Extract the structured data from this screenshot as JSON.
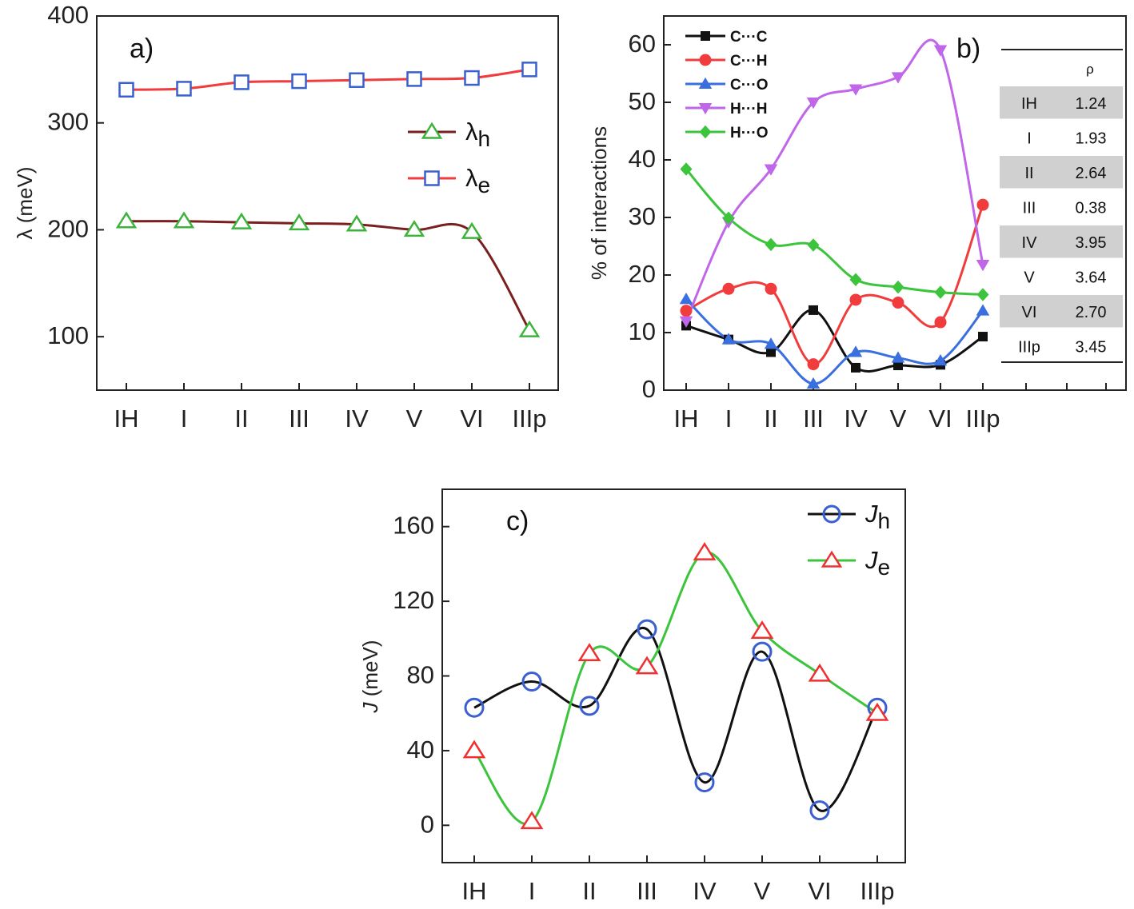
{
  "chart_data": [
    {
      "panel_label": "a)",
      "type": "line",
      "categories": [
        "IH",
        "I",
        "II",
        "III",
        "IV",
        "V",
        "VI",
        "IIIp"
      ],
      "xlabel": "",
      "ylabel": "λ (meV)",
      "ylim": [
        50,
        400
      ],
      "yticks": [
        100,
        200,
        300,
        400
      ],
      "legend_placement": "right",
      "series": [
        {
          "name": "λh",
          "name_main": "λ",
          "name_sub": "h",
          "marker": "triangle-open",
          "marker_color": "#3cb43c",
          "line_color": "#7a1f1f",
          "values": [
            208,
            208,
            207,
            206,
            205,
            200,
            198,
            106
          ]
        },
        {
          "name": "λe",
          "name_main": "λ",
          "name_sub": "e",
          "marker": "square-open",
          "marker_color": "#3a5fd0",
          "line_color": "#f03c3c",
          "values": [
            331,
            332,
            338,
            339,
            340,
            341,
            342,
            350
          ]
        }
      ]
    },
    {
      "panel_label": "b)",
      "type": "line",
      "categories": [
        "IH",
        "I",
        "II",
        "III",
        "IV",
        "V",
        "VI",
        "IIIp"
      ],
      "xlabel": "",
      "ylabel": "% of interactions",
      "ylim": [
        0,
        65
      ],
      "yticks": [
        0,
        10,
        20,
        30,
        40,
        50,
        60
      ],
      "legend_placement": "top-left",
      "series": [
        {
          "name": "C···C",
          "marker": "square",
          "color": "#111111",
          "values": [
            11.2,
            8.8,
            6.6,
            13.9,
            3.9,
            4.3,
            4.4,
            9.3
          ]
        },
        {
          "name": "C···H",
          "marker": "circle",
          "color": "#f03c3c",
          "values": [
            13.8,
            17.6,
            17.6,
            4.5,
            15.7,
            15.2,
            11.8,
            32.2
          ]
        },
        {
          "name": "C···O",
          "marker": "triangle",
          "color": "#3a6fe0",
          "values": [
            15.8,
            8.8,
            8.0,
            1.1,
            6.6,
            5.6,
            5.1,
            13.8
          ]
        },
        {
          "name": "H···H",
          "marker": "triangle-down",
          "color": "#c066e8",
          "values": [
            12.0,
            29.2,
            38.4,
            50.0,
            52.3,
            54.4,
            59.1,
            21.8
          ]
        },
        {
          "name": "H···O",
          "marker": "diamond",
          "color": "#3cc43c",
          "values": [
            38.4,
            29.9,
            25.3,
            25.2,
            19.2,
            17.9,
            17.0,
            16.6
          ]
        }
      ],
      "table": {
        "header": "ρ",
        "rows": [
          {
            "label": "IH",
            "value": "1.24",
            "shaded": true
          },
          {
            "label": "I",
            "value": "1.93",
            "shaded": false
          },
          {
            "label": "II",
            "value": "2.64",
            "shaded": true
          },
          {
            "label": "III",
            "value": "0.38",
            "shaded": false
          },
          {
            "label": "IV",
            "value": "3.95",
            "shaded": true
          },
          {
            "label": "V",
            "value": "3.64",
            "shaded": false
          },
          {
            "label": "VI",
            "value": "2.70",
            "shaded": true
          },
          {
            "label": "IIIp",
            "value": "3.45",
            "shaded": false
          }
        ]
      }
    },
    {
      "panel_label": "c)",
      "type": "line",
      "categories": [
        "IH",
        "I",
        "II",
        "III",
        "IV",
        "V",
        "VI",
        "IIIp"
      ],
      "xlabel": "",
      "ylabel": "J (meV)",
      "ylabel_main": "J",
      "ylabel_rest": " (meV)",
      "ylim": [
        -20,
        180
      ],
      "yticks": [
        0,
        40,
        80,
        120,
        160
      ],
      "legend_placement": "top-right",
      "series": [
        {
          "name": "Jh",
          "name_main": "J",
          "name_sub": "h",
          "marker": "circle-open",
          "marker_color": "#3a5fd0",
          "line_color": "#111111",
          "values": [
            63,
            77,
            64,
            105,
            23,
            93,
            8,
            63
          ]
        },
        {
          "name": "Je",
          "name_main": "J",
          "name_sub": "e",
          "marker": "triangle-open",
          "marker_color": "#f03030",
          "line_color": "#3cc43c",
          "values": [
            40,
            2,
            92,
            85,
            146,
            104,
            81,
            60
          ]
        }
      ]
    }
  ]
}
